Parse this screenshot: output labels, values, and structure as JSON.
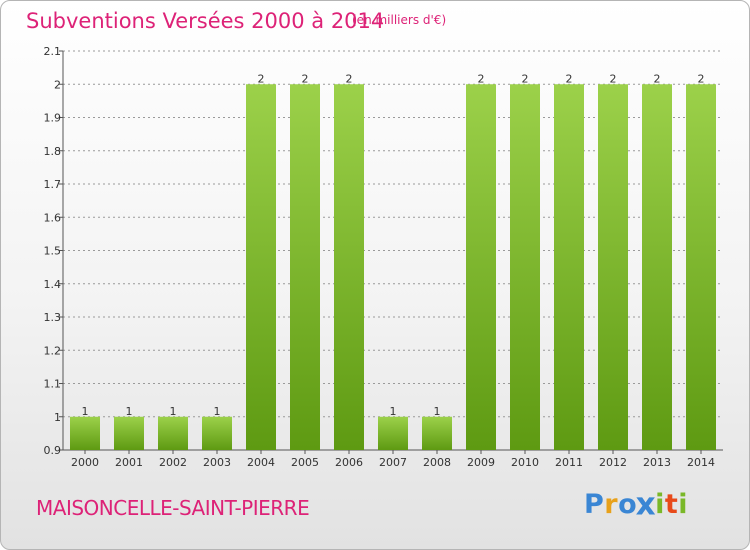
{
  "header": {
    "title": "Subventions Versées 2000 à 2014",
    "unit": "(en milliers d'€)"
  },
  "footer": {
    "town": "MAISONCELLE-SAINT-PIERRE",
    "logo_letters": [
      "P",
      "r",
      "o",
      "x",
      "i",
      "t",
      "i"
    ],
    "logo_colors": [
      "#3a86d4",
      "#e8a11a",
      "#3a86d4",
      "#3a86d4",
      "#7ab828",
      "#e84a1a",
      "#7ab828"
    ]
  },
  "chart_data": {
    "type": "bar",
    "title": "Subventions Versées 2000 à 2014",
    "subtitle": "(en milliers d'€)",
    "categories": [
      "2000",
      "2001",
      "2002",
      "2003",
      "2004",
      "2005",
      "2006",
      "2007",
      "2008",
      "2009",
      "2010",
      "2011",
      "2012",
      "2013",
      "2014"
    ],
    "values": [
      1,
      1,
      1,
      1,
      2,
      2,
      2,
      1,
      1,
      2,
      2,
      2,
      2,
      2,
      2
    ],
    "data_labels": [
      "1",
      "1",
      "1",
      "1",
      "2",
      "2",
      "2",
      "1",
      "1",
      "2",
      "2",
      "2",
      "2",
      "2",
      "2"
    ],
    "ylim": [
      0.9,
      2.1
    ],
    "yticks": [
      0.9,
      1,
      1.1,
      1.2,
      1.3,
      1.4,
      1.5,
      1.6,
      1.7,
      1.8,
      1.9,
      2,
      2.1
    ],
    "ytick_labels": [
      "0.9",
      "1",
      "1.1",
      "1.2",
      "1.3",
      "1.4",
      "1.5",
      "1.6",
      "1.7",
      "1.8",
      "1.9",
      "2",
      "2.1"
    ],
    "grid": true,
    "colors": {
      "bar_light": "#9cd14a",
      "bar_dark": "#5e9a12",
      "grid": "#9a9a9a",
      "axis": "#555555"
    }
  }
}
